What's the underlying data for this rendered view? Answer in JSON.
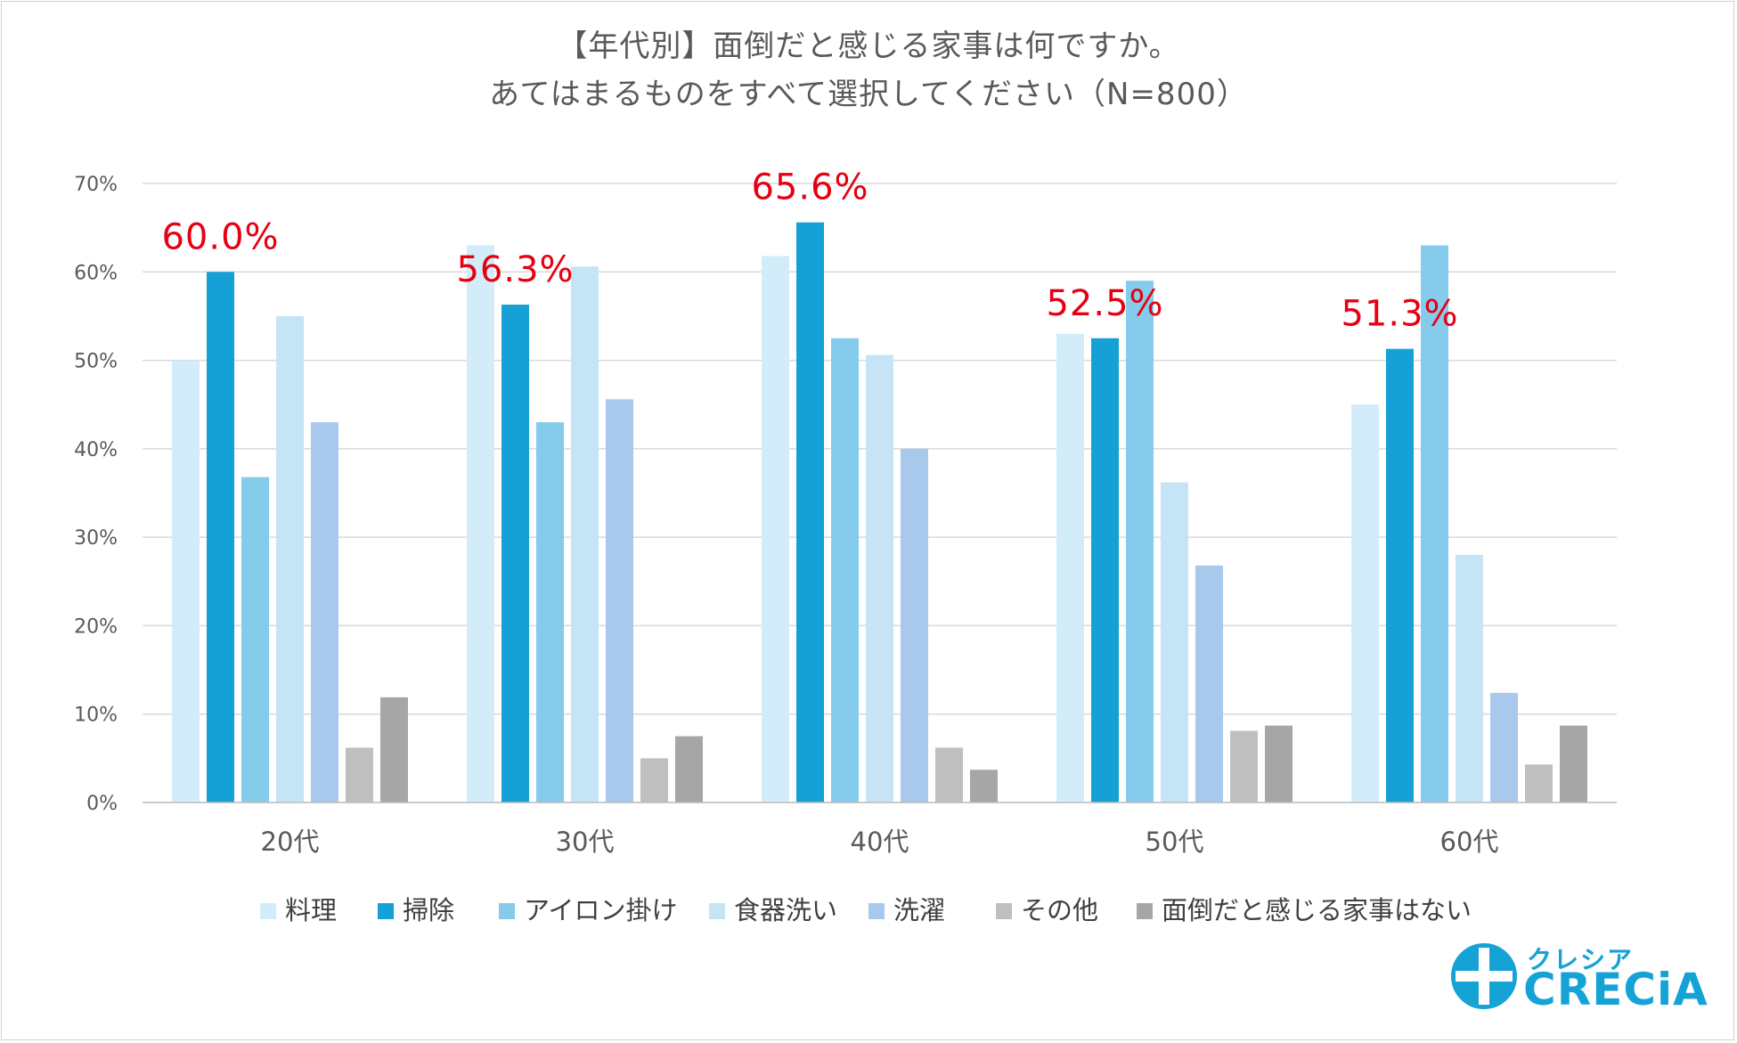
{
  "chart_data": {
    "type": "bar",
    "title_line1": "【年代別】面倒だと感じる家事は何ですか。",
    "title_line2": "あてはまるものをすべて選択してください（N=800）",
    "categories": [
      "20代",
      "30代",
      "40代",
      "50代",
      "60代"
    ],
    "ylim": [
      0,
      70
    ],
    "yticks": [
      "0%",
      "10%",
      "20%",
      "30%",
      "40%",
      "50%",
      "60%",
      "70%"
    ],
    "grid": true,
    "legend_position": "bottom",
    "series": [
      {
        "name": "料理",
        "color": "#d3ecf9",
        "values": [
          50.0,
          63.0,
          61.8,
          53.0,
          45.0
        ]
      },
      {
        "name": "掃除",
        "color": "#15a0d6",
        "values": [
          60.0,
          56.3,
          65.6,
          52.5,
          51.3
        ]
      },
      {
        "name": "アイロン掛け",
        "color": "#85cbeb",
        "values": [
          36.8,
          43.0,
          52.5,
          59.0,
          63.0
        ]
      },
      {
        "name": "食器洗い",
        "color": "#c5e4f6",
        "values": [
          55.0,
          60.6,
          50.6,
          36.2,
          28.0
        ]
      },
      {
        "name": "洗濯",
        "color": "#a9c9ec",
        "values": [
          43.0,
          45.6,
          40.0,
          26.8,
          12.4
        ]
      },
      {
        "name": "その他",
        "color": "#bfbfbf",
        "values": [
          6.2,
          5.0,
          6.2,
          8.1,
          4.3
        ]
      },
      {
        "name": "面倒だと感じる家事はない",
        "color": "#a6a6a6",
        "values": [
          11.9,
          7.5,
          3.7,
          8.7,
          8.7
        ]
      }
    ],
    "annotations": [
      "60.0%",
      "56.3%",
      "65.6%",
      "52.5%",
      "51.3%"
    ],
    "annotation_color": "#e60012"
  },
  "logo": {
    "small": "クレシア",
    "big": "CRECiA",
    "color": "#15a3d6"
  }
}
